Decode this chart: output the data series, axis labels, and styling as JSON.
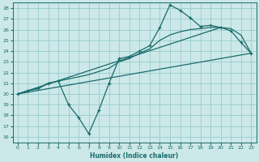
{
  "xlabel": "Humidex (Indice chaleur)",
  "bg_color": "#cce8e8",
  "grid_color": "#99cccc",
  "line_color": "#1a6b6b",
  "xlim": [
    -0.5,
    23.5
  ],
  "ylim": [
    15.5,
    28.5
  ],
  "xticks": [
    0,
    1,
    2,
    3,
    4,
    5,
    6,
    7,
    8,
    9,
    10,
    11,
    12,
    13,
    14,
    15,
    16,
    17,
    18,
    19,
    20,
    21,
    22,
    23
  ],
  "yticks": [
    16,
    17,
    18,
    19,
    20,
    21,
    22,
    23,
    24,
    25,
    26,
    27,
    28
  ],
  "series1_x": [
    0,
    1,
    2,
    3,
    4,
    5,
    6,
    7,
    8,
    9,
    10,
    11,
    12,
    13,
    14,
    15,
    16,
    17,
    18,
    19,
    20,
    21,
    22,
    23
  ],
  "series1_y": [
    20.0,
    20.3,
    20.5,
    21.0,
    21.2,
    19.0,
    17.8,
    16.3,
    18.5,
    21.0,
    23.3,
    23.5,
    24.0,
    24.5,
    26.2,
    28.3,
    27.8,
    27.1,
    26.3,
    26.4,
    26.2,
    25.9,
    24.8,
    23.8
  ],
  "series2_x": [
    0,
    1,
    2,
    3,
    4,
    5,
    6,
    7,
    8,
    9,
    10,
    11,
    12,
    13,
    14,
    15,
    16,
    17,
    18,
    19,
    20,
    21,
    22,
    23
  ],
  "series2_y": [
    20.0,
    20.3,
    20.5,
    21.0,
    21.2,
    21.4,
    21.6,
    21.8,
    22.1,
    22.4,
    23.0,
    23.3,
    23.8,
    24.2,
    25.0,
    25.5,
    25.8,
    26.0,
    26.1,
    26.2,
    26.2,
    26.1,
    25.5,
    23.8
  ],
  "line1_x": [
    0,
    20
  ],
  "line1_y": [
    20.0,
    26.2
  ],
  "line2_x": [
    0,
    23
  ],
  "line2_y": [
    20.0,
    23.8
  ]
}
